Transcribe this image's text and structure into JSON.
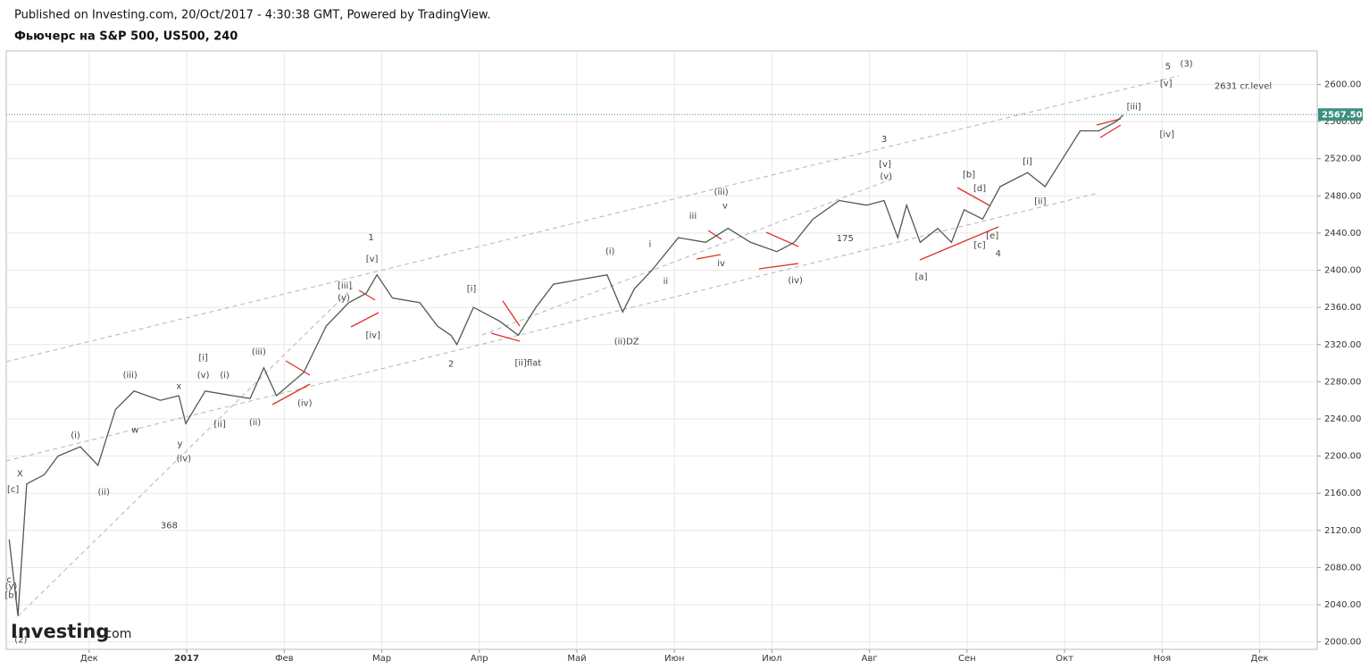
{
  "header": {
    "published": "Published on Investing.com, 20/Oct/2017 - 4:30:38 GMT, Powered by TradingView.",
    "instrument": "Фьючерс на S&P 500, US500, 240"
  },
  "brand": {
    "name": "Investing",
    "suffix": ".com"
  },
  "chart_data": {
    "type": "line",
    "color": "#4d5a52",
    "x": [
      -0.82,
      -0.73,
      -0.64,
      -0.46,
      -0.32,
      -0.09,
      0.09,
      0.27,
      0.46,
      0.73,
      0.92,
      0.99,
      1.19,
      1.47,
      1.65,
      1.79,
      1.92,
      2.2,
      2.43,
      2.66,
      2.84,
      2.95,
      3.11,
      3.39,
      3.57,
      3.71,
      3.77,
      3.94,
      4.21,
      4.4,
      4.58,
      4.76,
      5.04,
      5.31,
      5.47,
      5.59,
      5.77,
      6.04,
      6.32,
      6.55,
      6.78,
      7.05,
      7.23,
      7.42,
      7.69,
      7.97,
      8.15,
      8.29,
      8.38,
      8.52,
      8.7,
      8.84,
      8.97,
      9.16,
      9.34,
      9.62,
      9.8,
      9.98,
      10.16,
      10.35,
      10.53,
      10.6
    ],
    "values": [
      2110,
      2028,
      2170,
      2180,
      2200,
      2210,
      2190,
      2250,
      2270,
      2260,
      2265,
      2235,
      2270,
      2265,
      2262,
      2295,
      2265,
      2290,
      2340,
      2365,
      2375,
      2395,
      2370,
      2365,
      2340,
      2330,
      2320,
      2360,
      2345,
      2330,
      2360,
      2385,
      2390,
      2395,
      2355,
      2380,
      2400,
      2435,
      2430,
      2445,
      2430,
      2420,
      2430,
      2455,
      2475,
      2470,
      2475,
      2435,
      2470,
      2430,
      2445,
      2430,
      2465,
      2455,
      2490,
      2505,
      2490,
      2520,
      2550,
      2550,
      2560,
      2567
    ],
    "xlim": [
      -0.85,
      12.59
    ],
    "xticks": [
      {
        "value": 0,
        "label": "Дек"
      },
      {
        "value": 1,
        "label": "2017"
      },
      {
        "value": 2,
        "label": "Фев"
      },
      {
        "value": 3,
        "label": "Мар"
      },
      {
        "value": 4,
        "label": "Апр"
      },
      {
        "value": 5,
        "label": "Май"
      },
      {
        "value": 6,
        "label": "Июн"
      },
      {
        "value": 7,
        "label": "Июл"
      },
      {
        "value": 8,
        "label": "Авг"
      },
      {
        "value": 9,
        "label": "Сен"
      },
      {
        "value": 10,
        "label": "Окт"
      },
      {
        "value": 11,
        "label": "Ноя"
      },
      {
        "value": 12,
        "label": "Дек"
      }
    ],
    "ylim": [
      1992,
      2636
    ],
    "yticks": [
      {
        "value": 2000,
        "label": "2000.00"
      },
      {
        "value": 2040,
        "label": "2040.00"
      },
      {
        "value": 2080,
        "label": "2080.00"
      },
      {
        "value": 2120,
        "label": "2120.00"
      },
      {
        "value": 2160,
        "label": "2160.00"
      },
      {
        "value": 2200,
        "label": "2200.00"
      },
      {
        "value": 2240,
        "label": "2240.00"
      },
      {
        "value": 2280,
        "label": "2280.00"
      },
      {
        "value": 2320,
        "label": "2320.00"
      },
      {
        "value": 2360,
        "label": "2360.00"
      },
      {
        "value": 2400,
        "label": "2400.00"
      },
      {
        "value": 2440,
        "label": "2440.00"
      },
      {
        "value": 2480,
        "label": "2480.00"
      },
      {
        "value": 2520,
        "label": "2520.00"
      },
      {
        "value": 2560,
        "label": "2560.00"
      },
      {
        "value": 2600,
        "label": "2600.00"
      }
    ],
    "grid": true,
    "last_price": {
      "value": 2567.5,
      "label": "2567.50",
      "color": "#3d8f80"
    },
    "annotations": [
      {
        "text": "1",
        "x": 2.89,
        "y": 2435
      },
      {
        "text": "[v]",
        "x": 2.9,
        "y": 2412
      },
      {
        "text": "[iii]",
        "x": 2.62,
        "y": 2383
      },
      {
        "text": "(y)",
        "x": 2.61,
        "y": 2370
      },
      {
        "text": "[iv]",
        "x": 2.91,
        "y": 2330
      },
      {
        "text": "2",
        "x": 3.71,
        "y": 2299
      },
      {
        "text": "[i]",
        "x": 3.92,
        "y": 2380
      },
      {
        "text": "[ii]flat",
        "x": 4.5,
        "y": 2300
      },
      {
        "text": "(i)",
        "x": 5.34,
        "y": 2420
      },
      {
        "text": "(ii)DZ",
        "x": 5.51,
        "y": 2323
      },
      {
        "text": "i",
        "x": 5.75,
        "y": 2428
      },
      {
        "text": "ii",
        "x": 5.91,
        "y": 2388
      },
      {
        "text": "iii",
        "x": 6.19,
        "y": 2458
      },
      {
        "text": "iv",
        "x": 6.48,
        "y": 2407
      },
      {
        "text": "(iii)",
        "x": 6.48,
        "y": 2484
      },
      {
        "text": "v",
        "x": 6.52,
        "y": 2469
      },
      {
        "text": "(iv)",
        "x": 7.24,
        "y": 2389
      },
      {
        "text": "175",
        "x": 7.75,
        "y": 2434
      },
      {
        "text": "3",
        "x": 8.15,
        "y": 2541
      },
      {
        "text": "[v]",
        "x": 8.16,
        "y": 2514
      },
      {
        "text": "(v)",
        "x": 8.17,
        "y": 2501
      },
      {
        "text": "[a]",
        "x": 8.53,
        "y": 2393
      },
      {
        "text": "[b]",
        "x": 9.02,
        "y": 2503
      },
      {
        "text": "[d]",
        "x": 9.13,
        "y": 2488
      },
      {
        "text": "[c]",
        "x": 9.13,
        "y": 2427
      },
      {
        "text": "[e]",
        "x": 9.26,
        "y": 2437
      },
      {
        "text": "4",
        "x": 9.32,
        "y": 2418
      },
      {
        "text": "[i]",
        "x": 9.62,
        "y": 2517
      },
      {
        "text": "[ii]",
        "x": 9.75,
        "y": 2474
      },
      {
        "text": "[iii]",
        "x": 10.71,
        "y": 2576
      },
      {
        "text": "[iv]",
        "x": 11.05,
        "y": 2546
      },
      {
        "text": "[v]",
        "x": 11.04,
        "y": 2601
      },
      {
        "text": "5",
        "x": 11.06,
        "y": 2619
      },
      {
        "text": "(3)",
        "x": 11.25,
        "y": 2622
      },
      {
        "text": "2631 cr.level",
        "x": 11.83,
        "y": 2598
      },
      {
        "text": "X",
        "x": -0.71,
        "y": 2181
      },
      {
        "text": "[c]",
        "x": -0.78,
        "y": 2164
      },
      {
        "text": "(i)",
        "x": -0.14,
        "y": 2222
      },
      {
        "text": "(ii)",
        "x": 0.15,
        "y": 2161
      },
      {
        "text": "(iii)",
        "x": 0.42,
        "y": 2287
      },
      {
        "text": "w",
        "x": 0.47,
        "y": 2228
      },
      {
        "text": "x",
        "x": 0.92,
        "y": 2275
      },
      {
        "text": "y",
        "x": 0.93,
        "y": 2213
      },
      {
        "text": "(iv)",
        "x": 0.97,
        "y": 2197
      },
      {
        "text": "[i]",
        "x": 1.17,
        "y": 2306
      },
      {
        "text": "(v)",
        "x": 1.17,
        "y": 2287
      },
      {
        "text": "(i)",
        "x": 1.39,
        "y": 2287
      },
      {
        "text": "[ii]",
        "x": 1.34,
        "y": 2234
      },
      {
        "text": "(ii)",
        "x": 1.7,
        "y": 2236
      },
      {
        "text": "(iii)",
        "x": 1.74,
        "y": 2312
      },
      {
        "text": "(iv)",
        "x": 2.21,
        "y": 2257
      },
      {
        "text": "368",
        "x": 0.82,
        "y": 2125
      },
      {
        "text": "c",
        "x": -0.82,
        "y": 2067
      },
      {
        "text": "(y)",
        "x": -0.8,
        "y": 2060
      },
      {
        "text": "[b]",
        "x": -0.8,
        "y": 2050
      },
      {
        "text": "(2)",
        "x": -0.7,
        "y": 2002
      }
    ]
  }
}
